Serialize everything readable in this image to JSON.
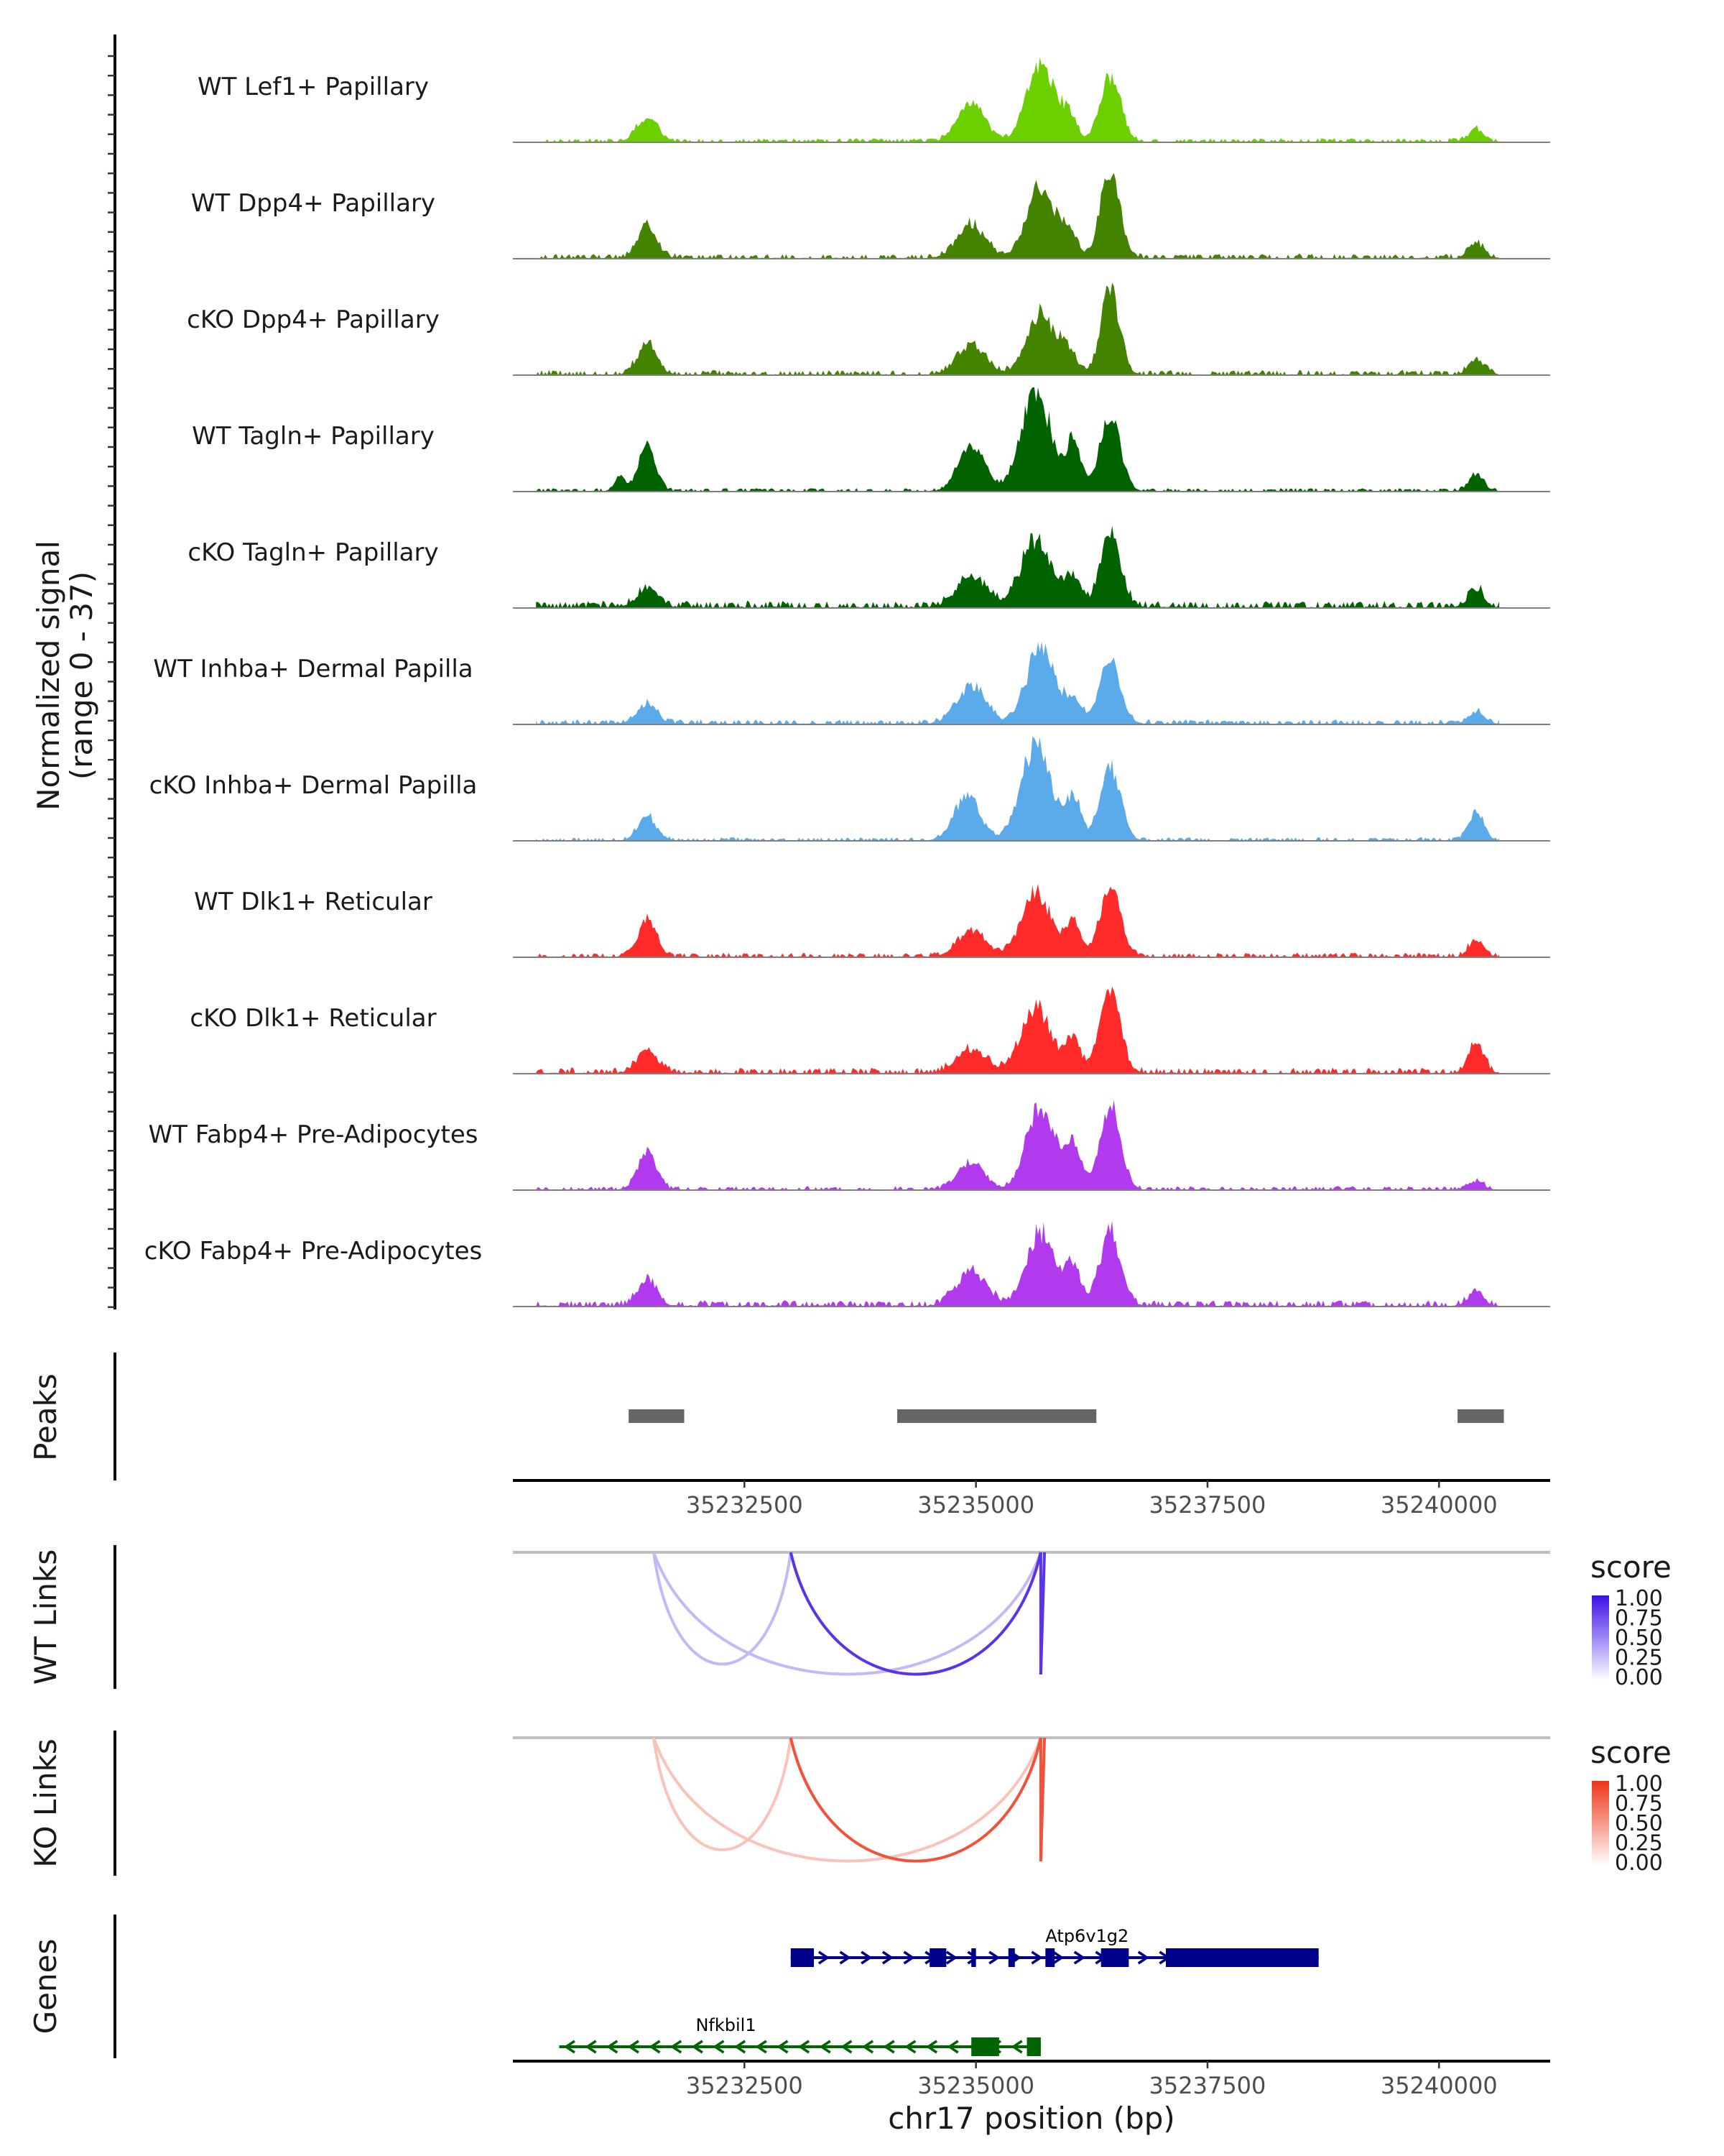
{
  "chart_data": {
    "type": "genome-coverage",
    "y_axis_label": [
      "Normalized signal",
      "(range 0 - 37)"
    ],
    "y_range": [
      0,
      37
    ],
    "x_axis_title": "chr17 position (bp)",
    "chromosome": "chr17",
    "x_range": [
      35230000,
      35241200
    ],
    "x_ticks": [
      {
        "value": 35232500,
        "label": "35232500"
      },
      {
        "value": 35235000,
        "label": "35235000"
      },
      {
        "value": 35237500,
        "label": "35237500"
      },
      {
        "value": 35240000,
        "label": "35240000"
      }
    ],
    "data_end": 35240650,
    "tracks": [
      {
        "label": "WT Lef1+ Papillary",
        "color": "#6CD000",
        "noise": 0.8,
        "peaks": [
          [
            35231450,
            110,
            0.22
          ],
          [
            35234950,
            140,
            0.4
          ],
          [
            35235700,
            150,
            0.73
          ],
          [
            35236000,
            90,
            0.22
          ],
          [
            35236450,
            110,
            0.61
          ],
          [
            35240400,
            80,
            0.12
          ]
        ]
      },
      {
        "label": "WT Dpp4+ Papillary",
        "color": "#448300",
        "noise": 1.0,
        "peaks": [
          [
            35231450,
            100,
            0.32
          ],
          [
            35234950,
            150,
            0.32
          ],
          [
            35235700,
            150,
            0.66
          ],
          [
            35236000,
            90,
            0.25
          ],
          [
            35236450,
            100,
            0.85
          ],
          [
            35240400,
            80,
            0.15
          ]
        ]
      },
      {
        "label": "cKO Dpp4+ Papillary",
        "color": "#448300",
        "noise": 1.0,
        "peaks": [
          [
            35231450,
            100,
            0.3
          ],
          [
            35234950,
            150,
            0.28
          ],
          [
            35235700,
            150,
            0.58
          ],
          [
            35236000,
            90,
            0.2
          ],
          [
            35236450,
            100,
            0.82
          ],
          [
            35240400,
            80,
            0.15
          ]
        ]
      },
      {
        "label": "WT Tagln+ Papillary",
        "color": "#006300",
        "noise": 0.7,
        "peaks": [
          [
            35231450,
            90,
            0.45
          ],
          [
            35231150,
            60,
            0.12
          ],
          [
            35234950,
            140,
            0.42
          ],
          [
            35235650,
            160,
            0.95
          ],
          [
            35236050,
            80,
            0.45
          ],
          [
            35236450,
            110,
            0.73
          ],
          [
            35240400,
            80,
            0.15
          ]
        ]
      },
      {
        "label": "cKO Tagln+ Papillary",
        "color": "#006300",
        "noise": 1.4,
        "peaks": [
          [
            35231450,
            110,
            0.18
          ],
          [
            35234950,
            160,
            0.28
          ],
          [
            35235650,
            160,
            0.65
          ],
          [
            35236050,
            80,
            0.3
          ],
          [
            35236450,
            110,
            0.67
          ],
          [
            35240400,
            80,
            0.18
          ]
        ]
      },
      {
        "label": "WT Inhba+ Dermal Papilla",
        "color": "#5BABEB",
        "noise": 1.0,
        "peaks": [
          [
            35231450,
            110,
            0.18
          ],
          [
            35234950,
            160,
            0.35
          ],
          [
            35235700,
            150,
            0.72
          ],
          [
            35236050,
            90,
            0.2
          ],
          [
            35236450,
            110,
            0.62
          ],
          [
            35240400,
            80,
            0.12
          ]
        ]
      },
      {
        "label": "cKO Inhba+ Dermal Papilla",
        "color": "#5BABEB",
        "noise": 0.7,
        "peaks": [
          [
            35231450,
            100,
            0.22
          ],
          [
            35234900,
            140,
            0.42
          ],
          [
            35235650,
            160,
            0.92
          ],
          [
            35236050,
            80,
            0.4
          ],
          [
            35236450,
            110,
            0.7
          ],
          [
            35240400,
            80,
            0.28
          ]
        ]
      },
      {
        "label": "WT Dlk1+ Reticular",
        "color": "#FF2A2A",
        "noise": 0.9,
        "peaks": [
          [
            35231450,
            100,
            0.35
          ],
          [
            35234950,
            150,
            0.25
          ],
          [
            35235650,
            160,
            0.6
          ],
          [
            35236050,
            80,
            0.32
          ],
          [
            35236450,
            110,
            0.68
          ],
          [
            35240400,
            80,
            0.15
          ]
        ]
      },
      {
        "label": "cKO Dlk1+ Reticular",
        "color": "#FF2A2A",
        "noise": 1.2,
        "peaks": [
          [
            35231450,
            110,
            0.22
          ],
          [
            35234950,
            160,
            0.22
          ],
          [
            35235650,
            160,
            0.62
          ],
          [
            35236050,
            80,
            0.32
          ],
          [
            35236450,
            110,
            0.76
          ],
          [
            35240400,
            80,
            0.3
          ]
        ]
      },
      {
        "label": "WT Fabp4+ Pre-Adipocytes",
        "color": "#B23AEE",
        "noise": 0.8,
        "peaks": [
          [
            35231450,
            100,
            0.36
          ],
          [
            35234950,
            140,
            0.26
          ],
          [
            35235700,
            150,
            0.8
          ],
          [
            35236050,
            80,
            0.45
          ],
          [
            35236450,
            110,
            0.8
          ],
          [
            35240400,
            80,
            0.08
          ]
        ]
      },
      {
        "label": "cKO Fabp4+ Pre-Adipocytes",
        "color": "#B23AEE",
        "noise": 1.2,
        "peaks": [
          [
            35231450,
            100,
            0.26
          ],
          [
            35234950,
            160,
            0.33
          ],
          [
            35235700,
            150,
            0.68
          ],
          [
            35236050,
            80,
            0.35
          ],
          [
            35236450,
            110,
            0.7
          ],
          [
            35240400,
            80,
            0.15
          ]
        ]
      }
    ],
    "peaks_track": {
      "label": "Peaks",
      "color": "#666666",
      "regions": [
        [
          35231250,
          35231850
        ],
        [
          35234150,
          35236300
        ],
        [
          35240200,
          35240700
        ]
      ]
    },
    "wt_links": {
      "label": "WT Links",
      "legend_title": "score",
      "legend_ticks": [
        "1.00",
        "0.75",
        "0.50",
        "0.25",
        "0.00"
      ],
      "color_high": "#3D10E8",
      "color_low": "#FFFFFF",
      "links": [
        {
          "start": 35231520,
          "end": 35233000,
          "score": 0.3
        },
        {
          "start": 35231520,
          "end": 35235700,
          "score": 0.3
        },
        {
          "start": 35233000,
          "end": 35235700,
          "score": 0.85
        },
        {
          "start": 35235700,
          "end": 35235740,
          "score": 0.85
        }
      ]
    },
    "ko_links": {
      "label": "KO Links",
      "legend_title": "score",
      "legend_ticks": [
        "1.00",
        "0.75",
        "0.50",
        "0.25",
        "0.00"
      ],
      "color_high": "#EE3517",
      "color_low": "#FFFFFF",
      "links": [
        {
          "start": 35231520,
          "end": 35233000,
          "score": 0.3
        },
        {
          "start": 35231520,
          "end": 35235700,
          "score": 0.3
        },
        {
          "start": 35233000,
          "end": 35235700,
          "score": 0.85
        },
        {
          "start": 35235700,
          "end": 35235740,
          "score": 0.85
        }
      ]
    },
    "genes_track": {
      "label": "Genes",
      "genes": [
        {
          "name": "Atp6v1g2",
          "strand": "+",
          "color": "#00008B",
          "start": 35233000,
          "end": 35238700,
          "exons": [
            [
              35233000,
              35233250
            ],
            [
              35234500,
              35234680
            ],
            [
              35234950,
              35235000
            ],
            [
              35235350,
              35235420
            ],
            [
              35235750,
              35235850
            ],
            [
              35236350,
              35236650
            ],
            [
              35237050,
              35238700
            ]
          ]
        },
        {
          "name": "Nfkbil1",
          "strand": "-",
          "color": "#006400",
          "start": 35230500,
          "end": 35235700,
          "exons": [
            [
              35234950,
              35235250
            ],
            [
              35235550,
              35235700
            ]
          ]
        }
      ]
    }
  }
}
